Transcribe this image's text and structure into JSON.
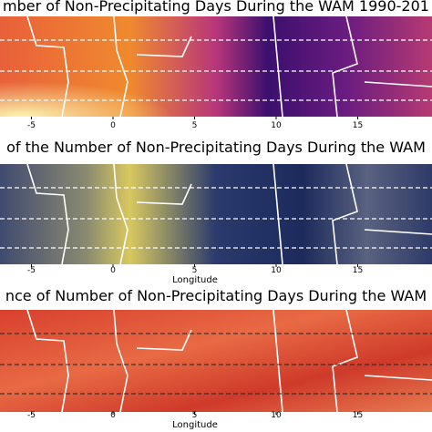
{
  "panels": [
    {
      "title": "mber of Non-Precipitating Days During the WAM 1990-201",
      "xticks": [
        -5,
        0,
        5,
        10,
        15
      ]
    },
    {
      "title": "of the Number of Non-Precipitating Days During the WAM",
      "xticks": [
        -5,
        0,
        5,
        10,
        15
      ],
      "xlabel": "Longitude"
    },
    {
      "title": "nce of Number of Non-Precipitating Days During the WAM",
      "xticks": [
        -5,
        0,
        5,
        10,
        15
      ],
      "xlabel": "Longitude"
    }
  ]
}
